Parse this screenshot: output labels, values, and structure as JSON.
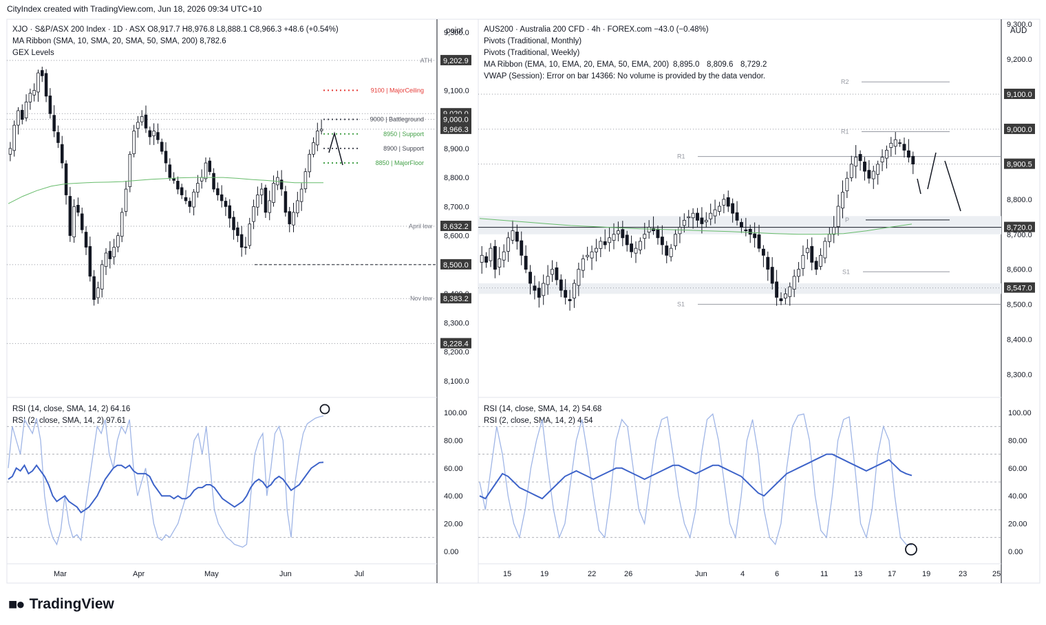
{
  "header": {
    "byline": "CityIndex created with TradingView.com, Jun 18, 2026 09:34 UTC+10"
  },
  "footer": {
    "brand": "TradingView"
  },
  "chart_data": [
    {
      "type": "candlestick",
      "panel": "left-price",
      "legend": [
        "XJO · S&P/ASX 200 Index · 1D · ASX  O8,917.7  H8,976.8  L8,888.1  C8,966.3  +48.6 (+0.54%)",
        "MA Ribbon (SMA, 10, SMA, 20, SMA, 50, SMA, 200)  8,782.6",
        "GEX Levels"
      ],
      "axis_unit": "point",
      "x_ticks": [
        "Mar",
        "Apr",
        "May",
        "Jun",
        "Jul"
      ],
      "y_ticks": [
        8100,
        8200,
        8300,
        8400,
        8500,
        8600,
        8700,
        8800,
        8900,
        9000,
        9100,
        9200,
        9300
      ],
      "ylim": [
        8050,
        9340
      ],
      "price_labels": [
        {
          "value": 9202.9,
          "text": "9,202.9",
          "tag": "ATH"
        },
        {
          "value": 9020.0,
          "text": "9,020.0"
        },
        {
          "value": 9000.0,
          "text": "9,000.0"
        },
        {
          "value": 8966.3,
          "text": "8,966.3"
        },
        {
          "value": 8632.2,
          "text": "8,632.2",
          "tag": "April low"
        },
        {
          "value": 8500.0,
          "text": "8,500.0"
        },
        {
          "value": 8383.2,
          "text": "8,383.2",
          "tag": "Nov low"
        },
        {
          "value": 8228.4,
          "text": "8,228.4"
        }
      ],
      "gex_levels": [
        {
          "value": 9100,
          "label": "9100 | MajorCeiling",
          "color": "#e53935"
        },
        {
          "value": 9000,
          "label": "9000 | Battleground",
          "color": "#434651"
        },
        {
          "value": 8950,
          "label": "8950 | Support",
          "color": "#43a047"
        },
        {
          "value": 8900,
          "label": "8900 | Support",
          "color": "#434651"
        },
        {
          "value": 8850,
          "label": "8850 | MajorFloor",
          "color": "#43a047"
        }
      ],
      "closes": [
        8900,
        8980,
        9030,
        9000,
        9060,
        9090,
        9100,
        9160,
        9150,
        9080,
        9020,
        8960,
        8920,
        8850,
        8740,
        8600,
        8700,
        8680,
        8620,
        8560,
        8460,
        8380,
        8420,
        8500,
        8540,
        8520,
        8560,
        8600,
        8680,
        8760,
        8880,
        8960,
        8990,
        9010,
        8970,
        8940,
        8960,
        8930,
        8890,
        8850,
        8800,
        8790,
        8760,
        8740,
        8720,
        8700,
        8750,
        8780,
        8800,
        8850,
        8820,
        8760,
        8740,
        8720,
        8700,
        8660,
        8620,
        8600,
        8560,
        8560,
        8640,
        8700,
        8740,
        8760,
        8680,
        8720,
        8780,
        8800,
        8760,
        8680,
        8640,
        8680,
        8720,
        8760,
        8820,
        8880,
        8920,
        8960,
        8966.3
      ],
      "ma200": [
        8710,
        8735,
        8755,
        8770,
        8778,
        8781,
        8783,
        8784,
        8786,
        8790,
        8794,
        8796,
        8799,
        8800,
        8800,
        8800,
        8797,
        8793,
        8790,
        8786,
        8782,
        8782,
        8782
      ]
    },
    {
      "type": "line",
      "panel": "left-rsi",
      "legend": [
        "RSI (14, close, SMA, 14, 2)  64.16",
        "RSI (2, close, SMA, 14, 2)  97.61"
      ],
      "y_ticks": [
        0,
        20,
        40,
        60,
        80,
        100
      ],
      "ylim": [
        -6,
        106
      ],
      "series": [
        {
          "values": [
            52,
            54,
            60,
            58,
            62,
            56,
            58,
            62,
            58,
            54,
            48,
            40,
            36,
            38,
            40,
            36,
            34,
            32,
            28,
            30,
            32,
            36,
            40,
            46,
            52,
            56,
            60,
            62,
            62,
            60,
            62,
            58,
            56,
            56,
            56,
            54,
            48,
            44,
            40,
            40,
            40,
            38,
            40,
            38,
            38,
            40,
            44,
            46,
            46,
            48,
            48,
            46,
            42,
            38,
            36,
            34,
            32,
            34,
            36,
            40,
            46,
            50,
            52,
            50,
            46,
            48,
            52,
            54,
            52,
            48,
            44,
            46,
            48,
            52,
            56,
            60,
            62,
            64,
            64.16
          ]
        },
        {
          "values": [
            60,
            90,
            80,
            70,
            95,
            90,
            85,
            96,
            80,
            40,
            20,
            10,
            5,
            15,
            40,
            20,
            10,
            12,
            8,
            30,
            50,
            70,
            90,
            85,
            95,
            70,
            60,
            80,
            90,
            85,
            95,
            60,
            40,
            50,
            60,
            40,
            20,
            10,
            8,
            12,
            10,
            15,
            20,
            30,
            40,
            60,
            80,
            85,
            70,
            90,
            60,
            30,
            20,
            15,
            10,
            8,
            5,
            4,
            3,
            5,
            40,
            70,
            80,
            85,
            40,
            60,
            85,
            90,
            80,
            30,
            10,
            50,
            70,
            85,
            92,
            94,
            96,
            97,
            97.61
          ]
        }
      ]
    },
    {
      "type": "candlestick",
      "panel": "right-price",
      "legend": [
        "AUS200 · Australia 200 CFD · 4h · FOREX.com  −43.0 (−0.48%)",
        "Pivots (Traditional, Monthly)",
        "Pivots (Traditional, Weekly)",
        "MA Ribbon (EMA, 10, EMA, 20, EMA, 50, EMA, 200)",
        "8,895.0",
        "8,809.6",
        "8,729.2",
        "VWAP (Session): Error on bar 14366: No volume is provided by the data vendor."
      ],
      "axis_unit": "AUD",
      "x_ticks": [
        "15",
        "19",
        "22",
        "26",
        "Jun",
        "4",
        "6",
        "11",
        "13",
        "17",
        "19",
        "23",
        "25"
      ],
      "y_ticks": [
        8300,
        8400,
        8500,
        8600,
        8700,
        8800,
        8900,
        9000,
        9100,
        9200,
        9300
      ],
      "ylim": [
        8250,
        9310
      ],
      "price_labels": [
        {
          "value": 9100.0,
          "text": "9,100.0"
        },
        {
          "value": 9000.0,
          "text": "9,000.0"
        },
        {
          "value": 8900.5,
          "text": "8,900.5"
        },
        {
          "value": 8720.0,
          "text": "8,720.0"
        },
        {
          "value": 8547.0,
          "text": "8,547.0"
        }
      ],
      "pivots": [
        {
          "label": "R2",
          "value": 9135
        },
        {
          "label": "R1",
          "value": 8993
        },
        {
          "label": "R1",
          "value": 8922
        },
        {
          "label": "P",
          "value": 8741
        },
        {
          "label": "S1",
          "value": 8593
        },
        {
          "label": "S1",
          "value": 8500
        }
      ],
      "closes": [
        8640,
        8620,
        8660,
        8600,
        8630,
        8650,
        8690,
        8710,
        8680,
        8640,
        8600,
        8560,
        8540,
        8520,
        8560,
        8580,
        8600,
        8570,
        8540,
        8520,
        8510,
        8560,
        8600,
        8630,
        8640,
        8650,
        8660,
        8680,
        8670,
        8690,
        8700,
        8710,
        8690,
        8670,
        8650,
        8660,
        8680,
        8700,
        8720,
        8710,
        8690,
        8670,
        8640,
        8660,
        8700,
        8720,
        8740,
        8750,
        8760,
        8740,
        8730,
        8740,
        8760,
        8770,
        8780,
        8800,
        8780,
        8760,
        8740,
        8720,
        8710,
        8700,
        8690,
        8660,
        8640,
        8600,
        8560,
        8520,
        8510,
        8530,
        8550,
        8580,
        8600,
        8640,
        8660,
        8620,
        8600,
        8640,
        8680,
        8700,
        8720,
        8780,
        8820,
        8860,
        8900,
        8920,
        8910,
        8880,
        8860,
        8880,
        8900,
        8920,
        8940,
        8960,
        8970,
        8960,
        8940,
        8920,
        8900.5
      ],
      "ema200": [
        8745,
        8740,
        8735,
        8730,
        8725,
        8722,
        8719,
        8716,
        8714,
        8712,
        8710,
        8708,
        8705,
        8702,
        8700,
        8700,
        8702,
        8710,
        8720,
        8729.2
      ]
    },
    {
      "type": "line",
      "panel": "right-rsi",
      "legend": [
        "RSI (14, close, SMA, 14, 2)  54.68",
        "RSI (2, close, SMA, 14, 2)  4.54"
      ],
      "y_ticks": [
        0,
        20,
        40,
        60,
        80,
        100
      ],
      "ylim": [
        -6,
        106
      ],
      "series": [
        {
          "values": [
            40,
            38,
            44,
            50,
            56,
            54,
            50,
            46,
            44,
            42,
            40,
            38,
            42,
            46,
            50,
            54,
            56,
            58,
            56,
            54,
            52,
            54,
            56,
            58,
            60,
            60,
            58,
            56,
            54,
            52,
            54,
            56,
            58,
            60,
            62,
            62,
            60,
            58,
            56,
            58,
            60,
            62,
            62,
            60,
            58,
            56,
            54,
            50,
            46,
            42,
            40,
            44,
            48,
            52,
            56,
            58,
            60,
            62,
            64,
            66,
            68,
            70,
            70,
            68,
            66,
            64,
            62,
            60,
            58,
            60,
            62,
            64,
            66,
            62,
            58,
            56,
            54.68
          ]
        },
        {
          "values": [
            50,
            30,
            60,
            90,
            70,
            40,
            20,
            10,
            30,
            60,
            80,
            95,
            60,
            30,
            10,
            20,
            50,
            80,
            95,
            70,
            40,
            15,
            10,
            40,
            80,
            95,
            90,
            60,
            30,
            20,
            50,
            80,
            95,
            97,
            70,
            40,
            20,
            10,
            30,
            70,
            95,
            99,
            80,
            50,
            20,
            10,
            40,
            80,
            95,
            70,
            30,
            10,
            5,
            20,
            60,
            90,
            98,
            99,
            80,
            40,
            15,
            10,
            40,
            80,
            95,
            97,
            60,
            20,
            10,
            30,
            70,
            90,
            80,
            40,
            10,
            5,
            4.54
          ]
        }
      ]
    }
  ]
}
